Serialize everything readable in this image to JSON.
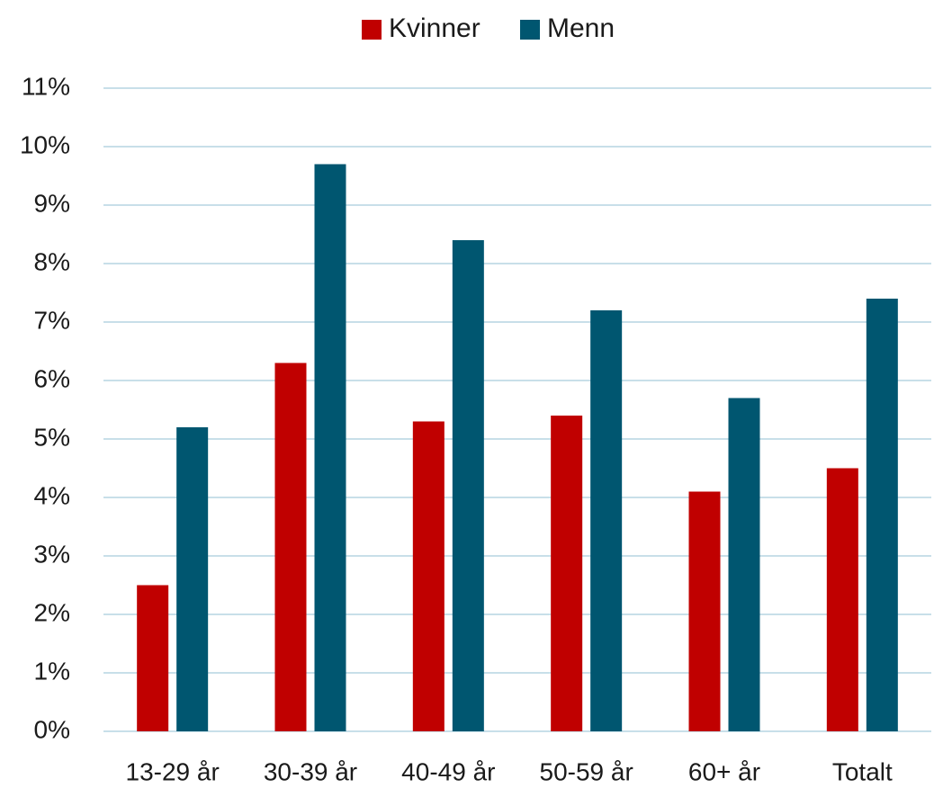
{
  "chart_data": {
    "type": "bar",
    "categories": [
      "13-29 år",
      "30-39 år",
      "40-49 år",
      "50-59 år",
      "60+ år",
      "Totalt"
    ],
    "series": [
      {
        "name": "Kvinner",
        "color": "#c00000",
        "values": [
          2.5,
          6.3,
          5.3,
          5.4,
          4.1,
          4.5
        ]
      },
      {
        "name": "Menn",
        "color": "#005670",
        "values": [
          5.2,
          9.7,
          8.4,
          7.2,
          5.7,
          7.4
        ]
      }
    ],
    "ylim": [
      0,
      11
    ],
    "yticks": [
      {
        "value": 0,
        "label": "0%"
      },
      {
        "value": 1,
        "label": "1%"
      },
      {
        "value": 2,
        "label": "2%"
      },
      {
        "value": 3,
        "label": "3%"
      },
      {
        "value": 4,
        "label": "4%"
      },
      {
        "value": 5,
        "label": "5%"
      },
      {
        "value": 6,
        "label": "6%"
      },
      {
        "value": 7,
        "label": "7%"
      },
      {
        "value": 8,
        "label": "8%"
      },
      {
        "value": 9,
        "label": "9%"
      },
      {
        "value": 10,
        "label": "10%"
      },
      {
        "value": 11,
        "label": "11%"
      }
    ],
    "grid": true,
    "legend": "top"
  }
}
